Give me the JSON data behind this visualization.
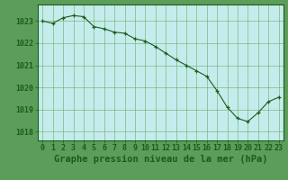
{
  "x": [
    0,
    1,
    2,
    3,
    4,
    5,
    6,
    7,
    8,
    9,
    10,
    11,
    12,
    13,
    14,
    15,
    16,
    17,
    18,
    19,
    20,
    21,
    22,
    23
  ],
  "y": [
    1023.0,
    1022.9,
    1023.15,
    1023.25,
    1023.2,
    1022.75,
    1022.65,
    1022.5,
    1022.45,
    1022.2,
    1022.1,
    1021.85,
    1021.55,
    1021.25,
    1021.0,
    1020.75,
    1020.5,
    1019.85,
    1019.1,
    1018.6,
    1018.45,
    1018.85,
    1019.35,
    1019.55
  ],
  "yticks": [
    1018,
    1019,
    1020,
    1021,
    1022,
    1023
  ],
  "xticks": [
    0,
    1,
    2,
    3,
    4,
    5,
    6,
    7,
    8,
    9,
    10,
    11,
    12,
    13,
    14,
    15,
    16,
    17,
    18,
    19,
    20,
    21,
    22,
    23
  ],
  "xlim": [
    -0.5,
    23.5
  ],
  "ylim": [
    1017.6,
    1023.75
  ],
  "line_color": "#1a5c1a",
  "marker_color": "#1a5c1a",
  "bg_color": "#c5ecec",
  "grid_color": "#6aaa6a",
  "xlabel": "Graphe pression niveau de la mer (hPa)",
  "xlabel_color": "#1a5c1a",
  "xlabel_fontsize": 7.5,
  "tick_color": "#1a5c1a",
  "tick_fontsize": 6,
  "outer_bg": "#5a9e5a"
}
